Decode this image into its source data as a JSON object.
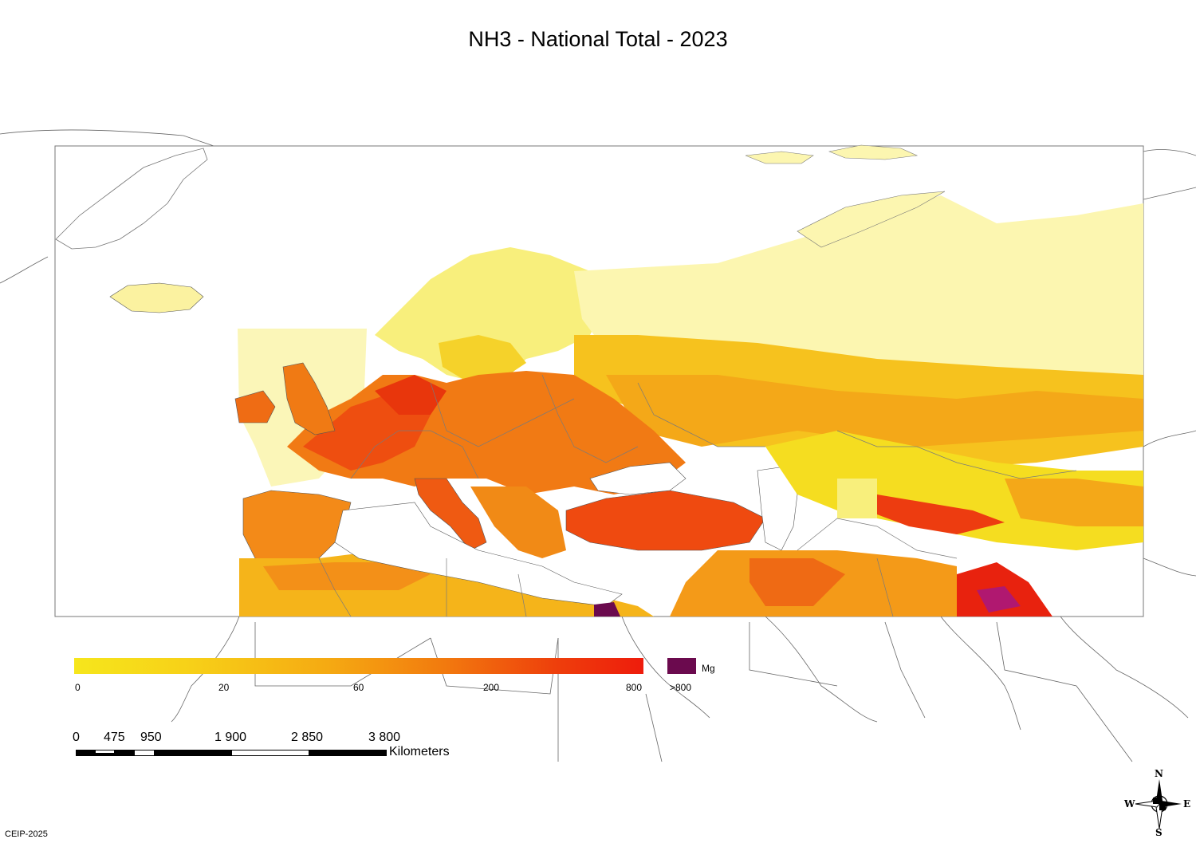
{
  "title": "NH3 - National Total - 2023",
  "legend": {
    "unit": "Mg",
    "ticks": [
      "0",
      "20",
      "60",
      "200",
      "800",
      ">800"
    ],
    "colors": [
      "#f6e61c",
      "#f7d118",
      "#f5a912",
      "#f27a0e",
      "#ee3e0c",
      "#ee1c0c"
    ],
    "over_color": "#6b0a4e"
  },
  "scale_bar": {
    "labels": [
      "0",
      "475",
      "950",
      "1 900",
      "2 850",
      "3 800"
    ],
    "unit": "Kilometers"
  },
  "credit": "CEIP-2025",
  "compass": {
    "n": "N",
    "s": "S",
    "e": "E",
    "w": "W"
  }
}
